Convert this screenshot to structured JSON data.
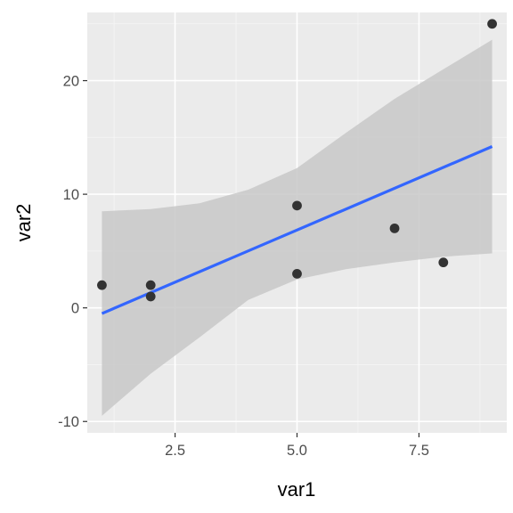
{
  "chart_data": {
    "type": "scatter",
    "title": "",
    "xlabel": "var1",
    "ylabel": "var2",
    "xlim": [
      0.7,
      9.3
    ],
    "ylim": [
      -11,
      26
    ],
    "x_ticks": [
      2.5,
      5.0,
      7.5
    ],
    "x_tick_labels": [
      "2.5",
      "5.0",
      "7.5"
    ],
    "x_minor": [
      1.25,
      3.75,
      6.25,
      8.75
    ],
    "y_ticks": [
      -10,
      0,
      10,
      20
    ],
    "y_tick_labels": [
      "-10",
      "0",
      "10",
      "20"
    ],
    "y_minor": [
      -5,
      5,
      15,
      25
    ],
    "grid": true,
    "points": [
      {
        "x": 1,
        "y": 2
      },
      {
        "x": 2,
        "y": 2
      },
      {
        "x": 2,
        "y": 1
      },
      {
        "x": 5,
        "y": 9
      },
      {
        "x": 5,
        "y": 3
      },
      {
        "x": 7,
        "y": 7
      },
      {
        "x": 8,
        "y": 4
      },
      {
        "x": 9,
        "y": 25
      }
    ],
    "trend_line": {
      "method": "lm",
      "x": [
        1,
        9
      ],
      "y": [
        -0.5,
        14.2
      ]
    },
    "confidence_band": {
      "x": [
        1,
        2,
        3,
        4,
        5,
        6,
        7,
        8,
        9
      ],
      "lower": [
        -9.5,
        -5.8,
        -2.6,
        0.7,
        2.5,
        3.4,
        4.0,
        4.5,
        4.8
      ],
      "upper": [
        8.5,
        8.7,
        9.2,
        10.4,
        12.3,
        15.4,
        18.4,
        21.0,
        23.6
      ]
    },
    "colors": {
      "panel": "#ebebeb",
      "grid_major": "#ffffff",
      "grid_minor": "#f5f5f5",
      "band": "#c8c8c8",
      "line": "#3366ff",
      "point": "#333333"
    }
  }
}
